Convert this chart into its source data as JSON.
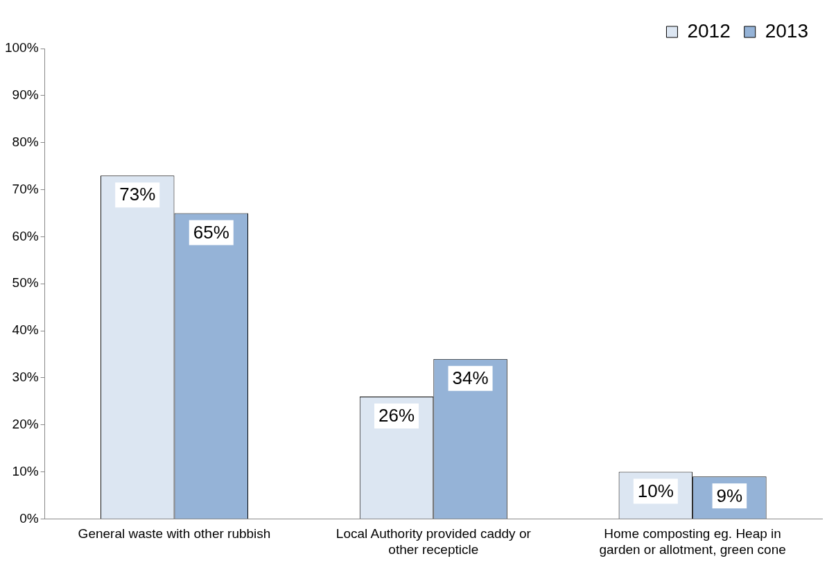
{
  "chart_data": {
    "type": "bar",
    "categories": [
      "General waste with other rubbish",
      "Local Authority provided caddy or other recepticle",
      "Home composting eg. Heap in garden or allotment, green cone"
    ],
    "series": [
      {
        "name": "2012",
        "color": "#dce6f2",
        "values": [
          73,
          26,
          10
        ],
        "value_labels": [
          "73%",
          "26%",
          "10%"
        ]
      },
      {
        "name": "2013",
        "color": "#95b3d7",
        "values": [
          65,
          34,
          9
        ],
        "value_labels": [
          "65%",
          "34%",
          "9%"
        ]
      }
    ],
    "ylim": [
      0,
      100
    ],
    "yticks": [
      {
        "value": 0,
        "label": "0%"
      },
      {
        "value": 10,
        "label": "10%"
      },
      {
        "value": 20,
        "label": "20%"
      },
      {
        "value": 30,
        "label": "30%"
      },
      {
        "value": 40,
        "label": "40%"
      },
      {
        "value": 50,
        "label": "50%"
      },
      {
        "value": 60,
        "label": "60%"
      },
      {
        "value": 70,
        "label": "70%"
      },
      {
        "value": 80,
        "label": "80%"
      },
      {
        "value": 90,
        "label": "90%"
      },
      {
        "value": 100,
        "label": "100%"
      }
    ],
    "grid": false,
    "legend": "top right"
  }
}
